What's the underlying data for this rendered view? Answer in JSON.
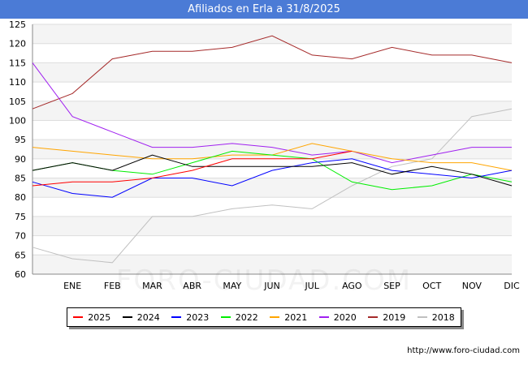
{
  "header": {
    "title": "Afiliados en Erla a 31/8/2025"
  },
  "footer": {
    "source": "http://www.foro-ciudad.com"
  },
  "watermark": "FORO-CIUDAD.COM",
  "chart_data": {
    "type": "line",
    "title": "Afiliados en Erla a 31/8/2025",
    "categories": [
      "",
      "ENE",
      "FEB",
      "MAR",
      "ABR",
      "MAY",
      "JUN",
      "JUL",
      "AGO",
      "SEP",
      "OCT",
      "NOV",
      "DIC"
    ],
    "ylim": [
      60,
      125
    ],
    "yticks": [
      60,
      65,
      70,
      75,
      80,
      85,
      90,
      95,
      100,
      105,
      110,
      115,
      120,
      125
    ],
    "grid": true,
    "legend_position": "bottom",
    "series": [
      {
        "name": "2025",
        "color": "#ff0000",
        "values": [
          83,
          84,
          84,
          85,
          87,
          90,
          90,
          90,
          92,
          null,
          null,
          null,
          null
        ]
      },
      {
        "name": "2024",
        "color": "#000000",
        "values": [
          87,
          89,
          87,
          91,
          88,
          88,
          88,
          88,
          89,
          86,
          88,
          86,
          83
        ]
      },
      {
        "name": "2023",
        "color": "#0000ff",
        "values": [
          84,
          81,
          80,
          85,
          85,
          83,
          87,
          89,
          90,
          87,
          86,
          85,
          87
        ]
      },
      {
        "name": "2022",
        "color": "#00ee00",
        "values": [
          87,
          89,
          87,
          86,
          89,
          92,
          91,
          90,
          84,
          82,
          83,
          86,
          84
        ]
      },
      {
        "name": "2021",
        "color": "#ffa500",
        "values": [
          93,
          92,
          91,
          90,
          90,
          91,
          91,
          94,
          92,
          90,
          89,
          89,
          87
        ]
      },
      {
        "name": "2020",
        "color": "#a020f0",
        "values": [
          115,
          101,
          97,
          93,
          93,
          94,
          93,
          91,
          92,
          89,
          91,
          93,
          93
        ]
      },
      {
        "name": "2019",
        "color": "#a52a2a",
        "values": [
          103,
          107,
          116,
          118,
          118,
          119,
          122,
          117,
          116,
          119,
          117,
          117,
          115
        ]
      },
      {
        "name": "2018",
        "color": "#c0c0c0",
        "values": [
          67,
          64,
          63,
          75,
          75,
          77,
          78,
          77,
          83,
          88,
          90,
          101,
          103
        ]
      }
    ]
  }
}
